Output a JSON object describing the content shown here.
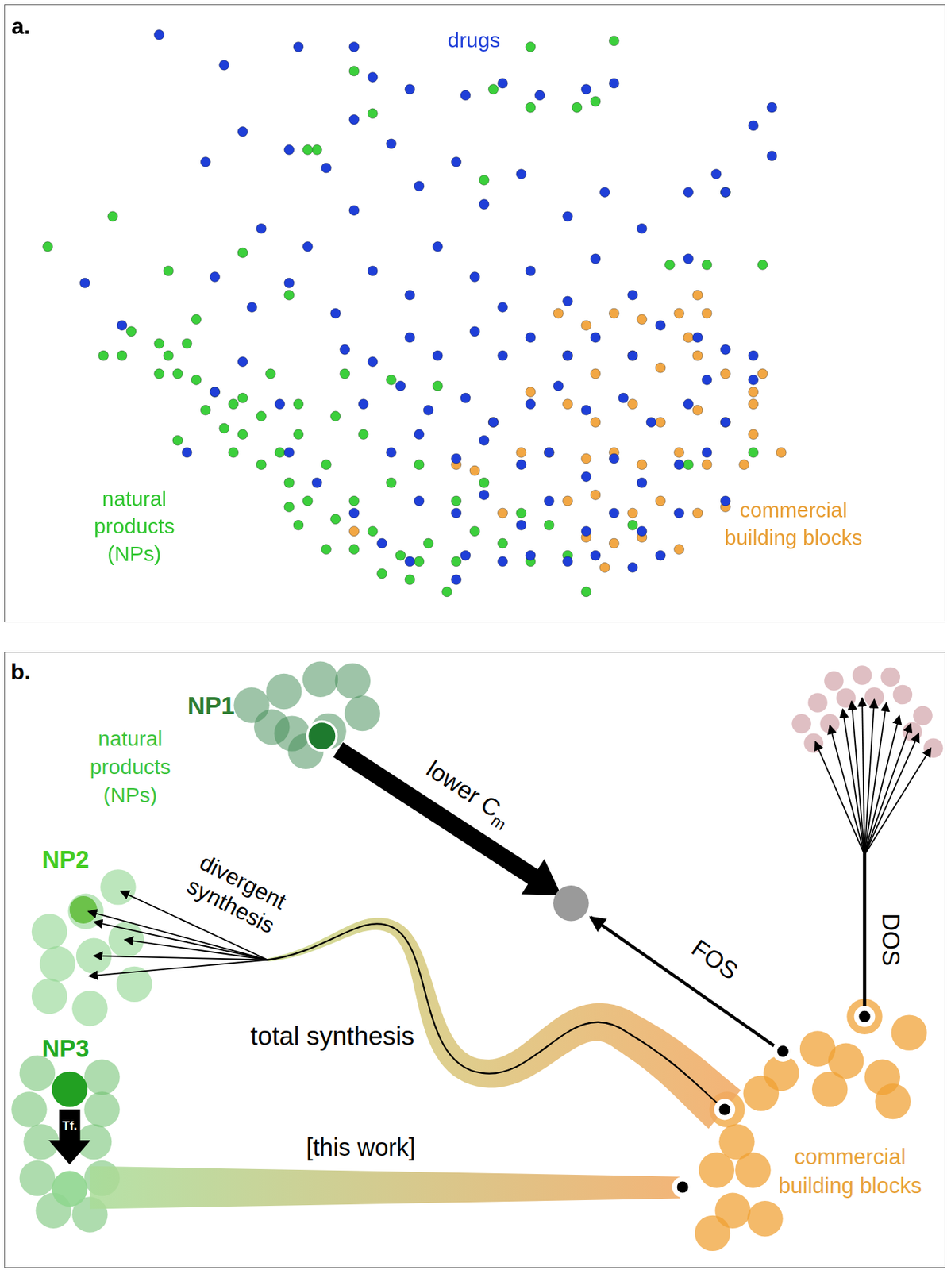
{
  "chart_data": {
    "type": "scatter",
    "title": "a.",
    "xlim": [
      0,
      100
    ],
    "ylim": [
      0,
      100
    ],
    "grid": false,
    "tick_labels": false,
    "legend": "none",
    "series": [
      {
        "name": "drugs",
        "color": "#1f3fd8",
        "marker": "circle",
        "values": [
          [
            16,
            96
          ],
          [
            23,
            91
          ],
          [
            31,
            94
          ],
          [
            37,
            94
          ],
          [
            39,
            89
          ],
          [
            43,
            87
          ],
          [
            49,
            86
          ],
          [
            53,
            88
          ],
          [
            57,
            86
          ],
          [
            62,
            87
          ],
          [
            65,
            88
          ],
          [
            80,
            81
          ],
          [
            82,
            84
          ],
          [
            82,
            76
          ],
          [
            21,
            75
          ],
          [
            25,
            80
          ],
          [
            30,
            77
          ],
          [
            34,
            74
          ],
          [
            37,
            82
          ],
          [
            41,
            78
          ],
          [
            44,
            71
          ],
          [
            48,
            75
          ],
          [
            51,
            68
          ],
          [
            55,
            73
          ],
          [
            60,
            66
          ],
          [
            64,
            70
          ],
          [
            68,
            64
          ],
          [
            73,
            70
          ],
          [
            76,
            73
          ],
          [
            77,
            70
          ],
          [
            73,
            59
          ],
          [
            27,
            64
          ],
          [
            32,
            61
          ],
          [
            37,
            67
          ],
          [
            8,
            55
          ],
          [
            12,
            48
          ],
          [
            22,
            56
          ],
          [
            26,
            51
          ],
          [
            30,
            55
          ],
          [
            35,
            50
          ],
          [
            39,
            57
          ],
          [
            43,
            53
          ],
          [
            46,
            61
          ],
          [
            50,
            56
          ],
          [
            53,
            51
          ],
          [
            56,
            57
          ],
          [
            60,
            52
          ],
          [
            63,
            59
          ],
          [
            67,
            53
          ],
          [
            70,
            48
          ],
          [
            74,
            46
          ],
          [
            77,
            44
          ],
          [
            80,
            43
          ],
          [
            36,
            44
          ],
          [
            39,
            42
          ],
          [
            43,
            46
          ],
          [
            46,
            43
          ],
          [
            50,
            47
          ],
          [
            53,
            43
          ],
          [
            56,
            46
          ],
          [
            60,
            43
          ],
          [
            63,
            46
          ],
          [
            67,
            43
          ],
          [
            38,
            35
          ],
          [
            42,
            38
          ],
          [
            45,
            34
          ],
          [
            49,
            36
          ],
          [
            52,
            32
          ],
          [
            56,
            35
          ],
          [
            59,
            38
          ],
          [
            62,
            34
          ],
          [
            66,
            36
          ],
          [
            69,
            32
          ],
          [
            73,
            35
          ],
          [
            41,
            27
          ],
          [
            44,
            30
          ],
          [
            48,
            26
          ],
          [
            51,
            29
          ],
          [
            55,
            25
          ],
          [
            58,
            27
          ],
          [
            62,
            23
          ],
          [
            65,
            26
          ],
          [
            68,
            22
          ],
          [
            72,
            25
          ],
          [
            75,
            27
          ],
          [
            44,
            19
          ],
          [
            48,
            17
          ],
          [
            51,
            20
          ],
          [
            55,
            15
          ],
          [
            58,
            19
          ],
          [
            62,
            14
          ],
          [
            65,
            17
          ],
          [
            68,
            14
          ],
          [
            72,
            17
          ],
          [
            77,
            19
          ],
          [
            49,
            10
          ],
          [
            53,
            9
          ],
          [
            56,
            10
          ],
          [
            60,
            9
          ],
          [
            63,
            10
          ],
          [
            67,
            8
          ],
          [
            70,
            10
          ],
          [
            48,
            6
          ],
          [
            30,
            27
          ],
          [
            33,
            22
          ],
          [
            37,
            17
          ],
          [
            25,
            42
          ],
          [
            29,
            35
          ],
          [
            22,
            37
          ],
          [
            19,
            27
          ],
          [
            40,
            12
          ],
          [
            43,
            9
          ],
          [
            77,
            32
          ],
          [
            80,
            39
          ],
          [
            75,
            39
          ]
        ]
      },
      {
        "name": "natural products (NPs)",
        "color": "#3ccf3c",
        "marker": "circle",
        "values": [
          [
            4,
            61
          ],
          [
            11,
            66
          ],
          [
            17,
            57
          ],
          [
            10,
            43
          ],
          [
            13,
            47
          ],
          [
            16,
            45
          ],
          [
            18,
            29
          ],
          [
            20,
            49
          ],
          [
            25,
            60
          ],
          [
            30,
            53
          ],
          [
            33,
            77
          ],
          [
            39,
            83
          ],
          [
            51,
            72
          ],
          [
            56,
            94
          ],
          [
            65,
            95
          ],
          [
            56,
            84
          ],
          [
            61,
            84
          ],
          [
            63,
            85
          ],
          [
            75,
            58
          ],
          [
            77,
            70
          ],
          [
            81,
            58
          ],
          [
            71,
            58
          ],
          [
            52,
            87
          ],
          [
            37,
            90
          ],
          [
            32,
            77
          ],
          [
            17,
            43
          ],
          [
            18,
            40
          ],
          [
            20,
            39
          ],
          [
            22,
            37
          ],
          [
            24,
            35
          ],
          [
            25,
            36
          ],
          [
            21,
            34
          ],
          [
            23,
            31
          ],
          [
            25,
            30
          ],
          [
            27,
            33
          ],
          [
            29,
            27
          ],
          [
            31,
            30
          ],
          [
            24,
            27
          ],
          [
            27,
            25
          ],
          [
            30,
            22
          ],
          [
            32,
            19
          ],
          [
            34,
            25
          ],
          [
            35,
            16
          ],
          [
            37,
            19
          ],
          [
            31,
            15
          ],
          [
            34,
            11
          ],
          [
            37,
            11
          ],
          [
            39,
            14
          ],
          [
            42,
            10
          ],
          [
            44,
            9
          ],
          [
            40,
            7
          ],
          [
            43,
            6
          ],
          [
            45,
            12
          ],
          [
            48,
            9
          ],
          [
            50,
            14
          ],
          [
            53,
            12
          ],
          [
            47,
            4
          ],
          [
            62,
            4
          ],
          [
            28,
            40
          ],
          [
            31,
            35
          ],
          [
            35,
            33
          ],
          [
            38,
            30
          ],
          [
            41,
            22
          ],
          [
            44,
            25
          ],
          [
            48,
            19
          ],
          [
            51,
            22
          ],
          [
            55,
            17
          ],
          [
            58,
            15
          ],
          [
            56,
            9
          ],
          [
            60,
            10
          ],
          [
            19,
            45
          ],
          [
            16,
            40
          ],
          [
            12,
            43
          ],
          [
            36,
            40
          ],
          [
            41,
            39
          ],
          [
            46,
            38
          ],
          [
            67,
            15
          ],
          [
            73,
            25
          ],
          [
            80,
            27
          ],
          [
            30,
            18
          ]
        ]
      },
      {
        "name": "commercial building blocks",
        "color": "#f2a744",
        "marker": "circle",
        "values": [
          [
            59,
            50
          ],
          [
            62,
            48
          ],
          [
            65,
            50
          ],
          [
            68,
            49
          ],
          [
            72,
            50
          ],
          [
            74,
            53
          ],
          [
            75,
            50
          ],
          [
            73,
            46
          ],
          [
            60,
            43
          ],
          [
            63,
            40
          ],
          [
            67,
            43
          ],
          [
            70,
            41
          ],
          [
            74,
            43
          ],
          [
            77,
            40
          ],
          [
            80,
            37
          ],
          [
            80,
            35
          ],
          [
            60,
            35
          ],
          [
            63,
            32
          ],
          [
            67,
            35
          ],
          [
            70,
            32
          ],
          [
            74,
            34
          ],
          [
            77,
            32
          ],
          [
            80,
            30
          ],
          [
            83,
            27
          ],
          [
            58,
            27
          ],
          [
            62,
            26
          ],
          [
            65,
            27
          ],
          [
            68,
            25
          ],
          [
            72,
            27
          ],
          [
            75,
            25
          ],
          [
            79,
            25
          ],
          [
            60,
            19
          ],
          [
            63,
            20
          ],
          [
            67,
            17
          ],
          [
            70,
            19
          ],
          [
            74,
            17
          ],
          [
            77,
            18
          ],
          [
            62,
            13
          ],
          [
            65,
            12
          ],
          [
            68,
            13
          ],
          [
            72,
            11
          ],
          [
            64,
            8
          ],
          [
            55,
            27
          ],
          [
            52,
            32
          ],
          [
            56,
            37
          ],
          [
            50,
            24
          ],
          [
            53,
            17
          ],
          [
            37,
            14
          ],
          [
            48,
            25
          ],
          [
            81,
            40
          ]
        ]
      }
    ]
  },
  "diagram": {
    "label": "b.",
    "groups": {
      "natural_products": "natural products (NPs)",
      "building_blocks": "commercial building blocks"
    },
    "nodes": [
      "NP1",
      "NP2",
      "NP3"
    ],
    "arrows": {
      "lower_cm": {
        "label": "lower C",
        "subscript": "m"
      },
      "fos": {
        "label": "FOS"
      },
      "dos": {
        "label": "DOS"
      },
      "total_synthesis": {
        "label": "total synthesis"
      },
      "divergent_synthesis": {
        "label": "divergent synthesis"
      },
      "transformation": {
        "label": "Tf."
      },
      "this_work": {
        "label": "[this work]"
      }
    }
  }
}
